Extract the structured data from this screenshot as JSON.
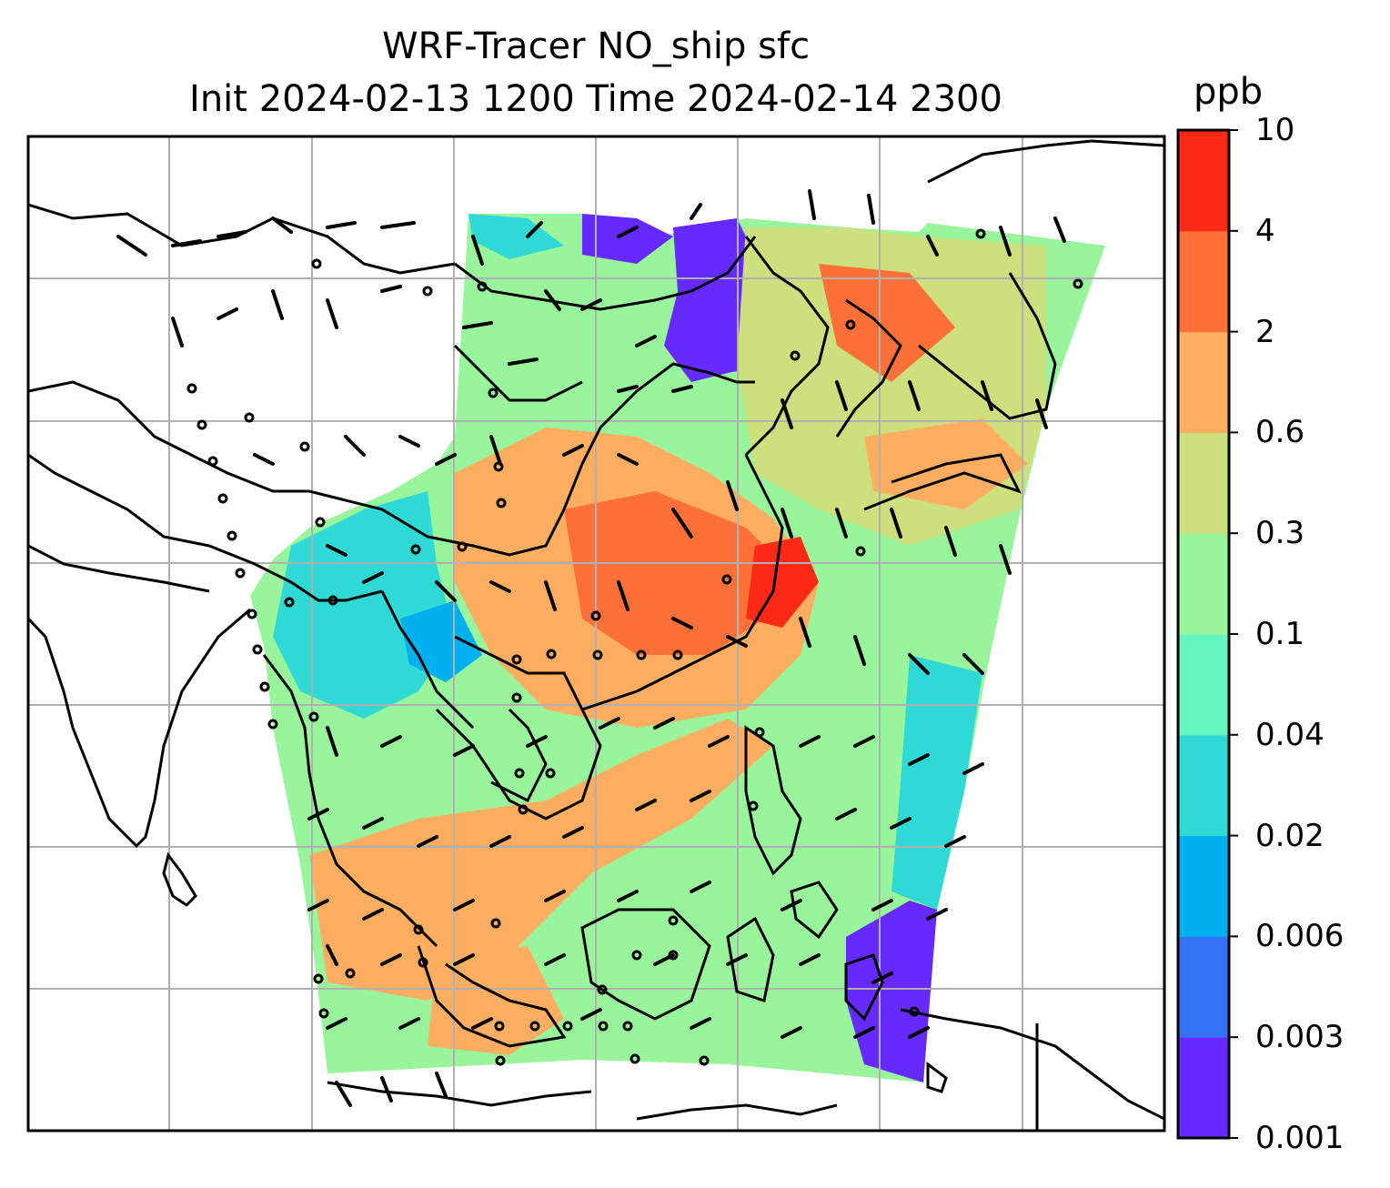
{
  "title": "WRF-Tracer NO_ship sfc",
  "subtitle": "Init 2024-02-13 1200 Time 2024-02-14 2300",
  "colorbar": {
    "unit": "ppb",
    "levels": [
      "0.001",
      "0.003",
      "0.006",
      "0.02",
      "0.04",
      "0.1",
      "0.3",
      "0.6",
      "2",
      "4",
      "10"
    ],
    "colors": [
      "#6629ff",
      "#3472f5",
      "#00b0ef",
      "#2ed9d6",
      "#66f5bf",
      "#99f59b",
      "#cce07e",
      "#ffad60",
      "#ff7038",
      "#ff2a16"
    ]
  },
  "map": {
    "features": [
      "coastlines",
      "country-borders",
      "gridlines",
      "wind-barbs",
      "calm-wind-circles",
      "tracer-concentration-fill"
    ]
  }
}
